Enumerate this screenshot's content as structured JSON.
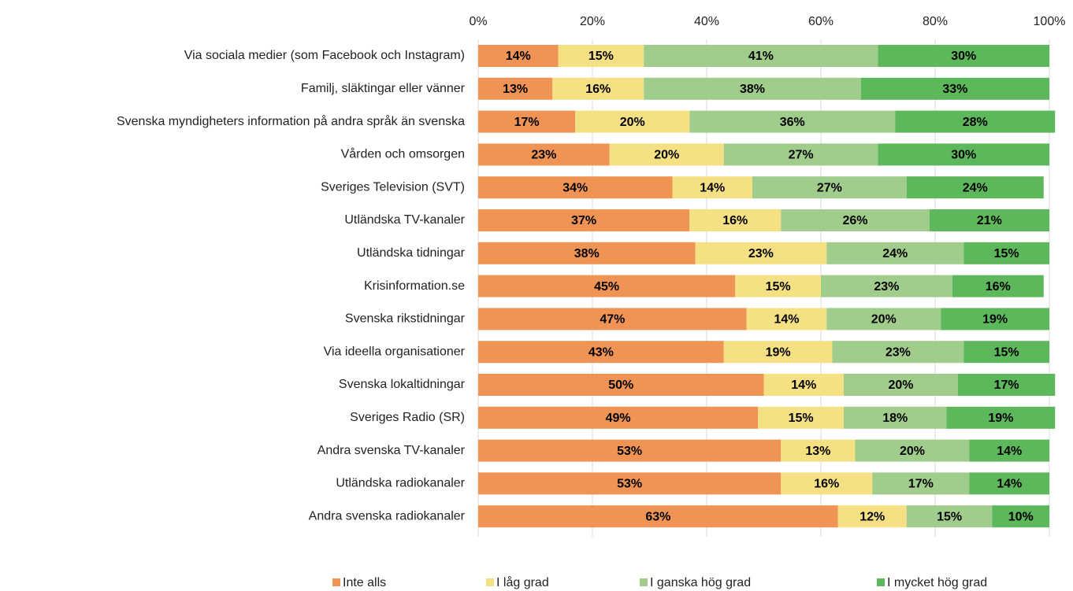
{
  "chart_data": {
    "type": "stacked_bar_horizontal",
    "categories": [
      "Via sociala medier (som Facebook och Instagram)",
      "Familj, släktingar eller vänner",
      "Svenska myndigheters information på andra språk än svenska",
      "Vården och omsorgen",
      "Sveriges Television (SVT)",
      "Utländska TV-kanaler",
      "Utländska tidningar",
      "Krisinformation.se",
      "Svenska rikstidningar",
      "Via ideella organisationer",
      "Svenska lokaltidningar",
      "Sveriges Radio (SR)",
      "Andra svenska TV-kanaler",
      "Utländska radiokanaler",
      "Andra svenska radiokanaler"
    ],
    "series": [
      {
        "name": "Inte alls",
        "color": "#f09456",
        "values": [
          14,
          13,
          17,
          23,
          34,
          37,
          38,
          45,
          47,
          43,
          50,
          49,
          53,
          53,
          63
        ],
        "value_labels": [
          "14%",
          "13%",
          "17%",
          "23%",
          "34%",
          "37%",
          "38%",
          "45%",
          "47%",
          "43%",
          "50%",
          "49%",
          "53%",
          "53%",
          "63%"
        ]
      },
      {
        "name": "I låg grad",
        "color": "#f6e084",
        "values": [
          15,
          16,
          20,
          20,
          14,
          16,
          23,
          15,
          14,
          19,
          14,
          15,
          13,
          16,
          12
        ],
        "value_labels": [
          "15%",
          "16%",
          "20%",
          "20%",
          "14%",
          "16%",
          "23%",
          "15%",
          "14%",
          "19%",
          "14%",
          "15%",
          "13%",
          "16%",
          "12%"
        ]
      },
      {
        "name": "I ganska hög grad",
        "color": "#a0cc8c",
        "values": [
          41,
          38,
          36,
          27,
          27,
          26,
          24,
          23,
          20,
          23,
          20,
          18,
          20,
          17,
          15
        ],
        "value_labels": [
          "41%",
          "38%",
          "36%",
          "27%",
          "27%",
          "26%",
          "24%",
          "23%",
          "20%",
          "23%",
          "20%",
          "18%",
          "20%",
          "17%",
          "15%"
        ]
      },
      {
        "name": "I mycket hög grad",
        "color": "#5cb85a",
        "values": [
          30,
          33,
          28,
          30,
          24,
          21,
          15,
          16,
          19,
          15,
          17,
          19,
          14,
          14,
          10
        ],
        "value_labels": [
          "30%",
          "33%",
          "28%",
          "30%",
          "24%",
          "21%",
          "15%",
          "16%",
          "19%",
          "15%",
          "17%",
          "19%",
          "14%",
          "14%",
          "10%"
        ]
      }
    ],
    "xlim": [
      0,
      100
    ],
    "xticks": [
      {
        "value": 0,
        "label": "0%"
      },
      {
        "value": 20,
        "label": "20%"
      },
      {
        "value": 40,
        "label": "40%"
      },
      {
        "value": 60,
        "label": "60%"
      },
      {
        "value": 80,
        "label": "80%"
      },
      {
        "value": 100,
        "label": "100%"
      }
    ],
    "grid": true,
    "legend": "bottom"
  }
}
